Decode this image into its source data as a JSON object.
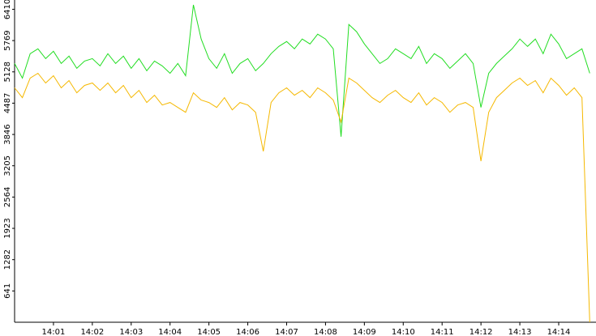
{
  "chart_data": {
    "type": "line",
    "x": [
      0.0,
      0.2,
      0.4,
      0.6,
      0.8,
      1.0,
      1.2,
      1.4,
      1.6,
      1.8,
      2.0,
      2.2,
      2.4,
      2.6,
      2.8,
      3.0,
      3.2,
      3.4,
      3.6,
      3.8,
      4.0,
      4.2,
      4.4,
      4.6,
      4.8,
      5.0,
      5.2,
      5.4,
      5.6,
      5.8,
      6.0,
      6.2,
      6.4,
      6.6,
      6.8,
      7.0,
      7.2,
      7.4,
      7.6,
      7.8,
      8.0,
      8.2,
      8.4,
      8.6,
      8.8,
      9.0,
      9.2,
      9.4,
      9.6,
      9.8,
      10.0,
      10.2,
      10.4,
      10.6,
      10.8,
      11.0,
      11.2,
      11.4,
      11.6,
      11.8,
      12.0,
      12.2,
      12.4,
      12.6,
      12.8,
      13.0,
      13.2,
      13.4,
      13.6,
      13.8,
      14.0,
      14.2,
      14.4,
      14.6,
      14.8
    ],
    "series": [
      {
        "color": "#22dd22",
        "values": [
          5300,
          5000,
          5500,
          5600,
          5400,
          5550,
          5300,
          5450,
          5200,
          5350,
          5400,
          5250,
          5500,
          5300,
          5450,
          5200,
          5400,
          5150,
          5350,
          5250,
          5100,
          5300,
          5050,
          6500,
          5800,
          5400,
          5200,
          5500,
          5100,
          5300,
          5400,
          5150,
          5300,
          5500,
          5650,
          5750,
          5600,
          5800,
          5700,
          5900,
          5800,
          5600,
          3800,
          6100,
          5950,
          5700,
          5500,
          5300,
          5400,
          5600,
          5500,
          5400,
          5650,
          5300,
          5500,
          5400,
          5200,
          5350,
          5500,
          5300,
          4400,
          5100,
          5300,
          5450,
          5600,
          5800,
          5650,
          5800,
          5500,
          5900,
          5700,
          5400,
          5500,
          5600,
          5100
        ]
      },
      {
        "color": "#f5b800",
        "values": [
          4800,
          4600,
          5000,
          5100,
          4900,
          5050,
          4800,
          4950,
          4700,
          4850,
          4900,
          4750,
          4900,
          4700,
          4850,
          4600,
          4750,
          4500,
          4650,
          4450,
          4500,
          4400,
          4300,
          4700,
          4550,
          4500,
          4400,
          4600,
          4350,
          4500,
          4450,
          4300,
          3500,
          4500,
          4700,
          4800,
          4650,
          4750,
          4600,
          4800,
          4700,
          4550,
          4100,
          5000,
          4900,
          4750,
          4600,
          4500,
          4650,
          4750,
          4600,
          4500,
          4700,
          4450,
          4600,
          4500,
          4300,
          4450,
          4500,
          4400,
          3300,
          4300,
          4600,
          4750,
          4900,
          5000,
          4850,
          4950,
          4700,
          5000,
          4850,
          4650,
          4800,
          4600,
          0
        ]
      }
    ],
    "xlim": [
      0,
      14.96
    ],
    "xticks": [
      {
        "value": 1,
        "label": "14:01"
      },
      {
        "value": 2,
        "label": "14:02"
      },
      {
        "value": 3,
        "label": "14:03"
      },
      {
        "value": 4,
        "label": "14:04"
      },
      {
        "value": 5,
        "label": "14:05"
      },
      {
        "value": 6,
        "label": "14:06"
      },
      {
        "value": 7,
        "label": "14:07"
      },
      {
        "value": 8,
        "label": "14:08"
      },
      {
        "value": 9,
        "label": "14:09"
      },
      {
        "value": 10,
        "label": "14:10"
      },
      {
        "value": 11,
        "label": "14:11"
      },
      {
        "value": 12,
        "label": "14:12"
      },
      {
        "value": 13,
        "label": "14:13"
      },
      {
        "value": 14,
        "label": "14:14"
      }
    ],
    "ylim": [
      0,
      6600
    ],
    "yticks": [
      641,
      1282,
      1923,
      2564,
      3205,
      3846,
      4487,
      5128,
      5769,
      6410
    ]
  }
}
